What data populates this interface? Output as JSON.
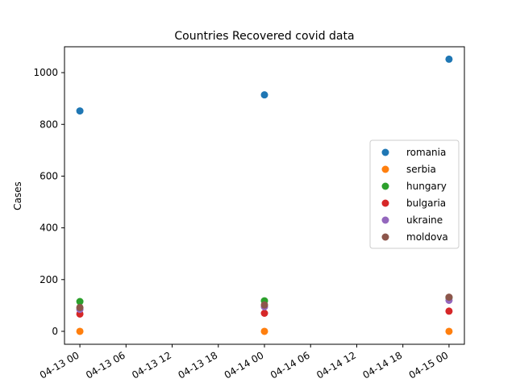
{
  "chart_data": {
    "type": "scatter",
    "title": "Countries Recovered covid data",
    "xlabel": "",
    "ylabel": "Cases",
    "x": [
      "2020-04-13 00:00",
      "2020-04-14 00:00",
      "2020-04-15 00:00"
    ],
    "xlim": [
      "2020-04-12 22:00",
      "2020-04-15 02:00"
    ],
    "ylim": [
      -50,
      1100
    ],
    "x_ticks": [
      "04-13 00",
      "04-13 06",
      "04-13 12",
      "04-13 18",
      "04-14 00",
      "04-14 06",
      "04-14 12",
      "04-14 18",
      "04-15 00"
    ],
    "y_ticks": [
      0,
      200,
      400,
      600,
      800,
      1000
    ],
    "grid": false,
    "legend_position": "center-right",
    "series": [
      {
        "name": "romania",
        "color": "#1f77b4",
        "values": [
          852,
          914,
          1052
        ]
      },
      {
        "name": "serbia",
        "color": "#ff7f0e",
        "values": [
          0,
          0,
          0
        ]
      },
      {
        "name": "hungary",
        "color": "#2ca02c",
        "values": [
          115,
          118,
          130
        ]
      },
      {
        "name": "bulgaria",
        "color": "#d62728",
        "values": [
          67,
          70,
          78
        ]
      },
      {
        "name": "ukraine",
        "color": "#9467bd",
        "values": [
          85,
          95,
          120
        ]
      },
      {
        "name": "moldova",
        "color": "#8c564b",
        "values": [
          92,
          102,
          132
        ]
      }
    ]
  }
}
